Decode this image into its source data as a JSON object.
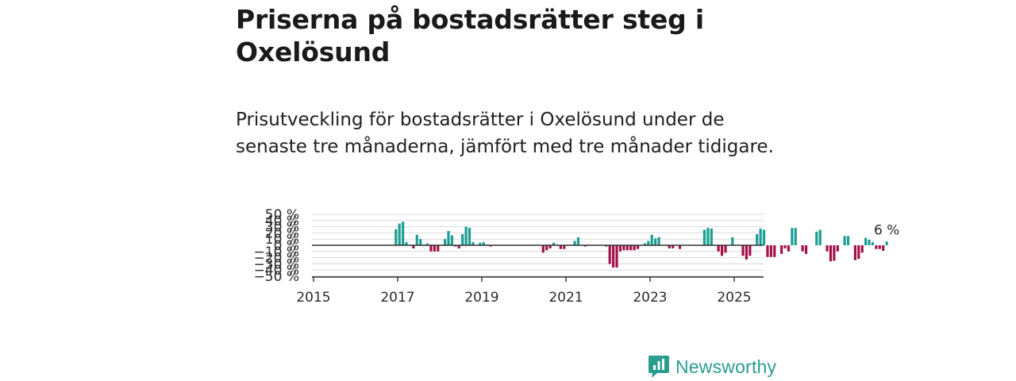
{
  "title": "Priserna på bostadsrätter steg i Oxelösund",
  "subtitle": "Prisutveckling för bostadsrätter i Oxelösund under de senaste tre månaderna, jämfört med tre månader tidigare.",
  "logo_text": "Newsworthy",
  "colors": {
    "positive": "#1b9e93",
    "negative": "#a3114a",
    "grid": "#d9d9d9",
    "axis": "#333333",
    "logo": "#2a9d8f"
  },
  "chart_data": {
    "type": "bar",
    "title": "",
    "xlabel": "",
    "ylabel": "",
    "ylim": [
      -50,
      50
    ],
    "y_ticks": [
      "50 %",
      "40 %",
      "30 %",
      "20 %",
      "10 %",
      "0 %",
      "−10 %",
      "−20 %",
      "−30 %",
      "−40 %",
      "−50 %"
    ],
    "x_ticks": [
      "2015",
      "2017",
      "2019",
      "2021",
      "2023",
      "2025"
    ],
    "last_value_label": "6 %",
    "x_start": "2015-01",
    "series": [
      {
        "values": [
          0,
          0,
          0,
          0,
          0,
          0,
          0,
          0,
          0,
          0,
          0,
          0,
          0,
          0,
          0,
          0,
          0,
          0,
          0,
          0,
          1,
          0,
          0,
          26,
          35,
          38,
          5,
          0,
          -5,
          17,
          10,
          1,
          3,
          -10,
          -10,
          -10,
          0,
          10,
          23,
          16,
          -2,
          -5,
          18,
          30,
          28,
          5,
          0,
          4,
          5,
          1,
          -2,
          0,
          0,
          0,
          0,
          0,
          0,
          0,
          0,
          0,
          0,
          0,
          0,
          0,
          0,
          -12,
          -8,
          -5,
          4,
          1,
          -6,
          -6,
          0,
          0,
          7,
          13,
          0,
          -2,
          0,
          0,
          0,
          0,
          0,
          -2,
          -30,
          -36,
          -36,
          -10,
          -8,
          -8,
          -8,
          -8,
          -6,
          0,
          3,
          7,
          17,
          11,
          13,
          0,
          0,
          -5,
          -5,
          0,
          -6,
          0,
          0,
          0,
          0,
          0,
          0,
          25,
          28,
          27,
          0,
          -10,
          -17,
          -12,
          0,
          13,
          0,
          0,
          -17,
          -23,
          -17,
          0,
          18,
          27,
          25,
          -19,
          -19,
          -19,
          0,
          -14,
          -5,
          -10,
          28,
          28,
          0,
          -10,
          -14,
          0,
          0,
          22,
          25,
          0,
          -10,
          -26,
          -25,
          -10,
          0,
          15,
          15,
          0,
          -24,
          -22,
          -12,
          12,
          9,
          5,
          -6,
          -6,
          -9,
          6
        ]
      }
    ]
  }
}
